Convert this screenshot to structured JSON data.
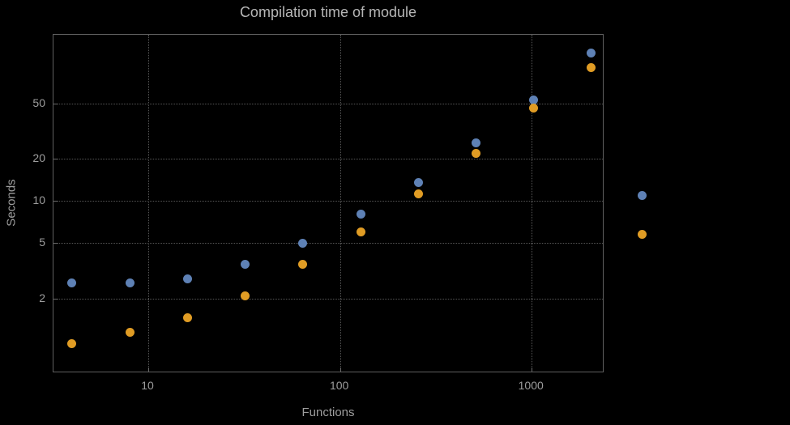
{
  "title": "Compilation time of module",
  "xlabel": "Functions",
  "ylabel": "Seconds",
  "chart_data": {
    "type": "scatter",
    "title": "Compilation time of module",
    "xlabel": "Functions",
    "ylabel": "Seconds",
    "xscale": "log",
    "yscale": "log",
    "xlim": [
      3.2,
      2350
    ],
    "ylim": [
      0.6,
      155
    ],
    "xticks": [
      10,
      100,
      1000
    ],
    "yticks": [
      2,
      5,
      10,
      20,
      50
    ],
    "grid": true,
    "background": "#000000",
    "frame_color": "#5f5f5f",
    "grid_color": "#575757",
    "text_color": "#9d9d9d",
    "x": [
      4,
      8,
      16,
      32,
      64,
      128,
      256,
      512,
      1024,
      2048
    ],
    "series": [
      {
        "name": "blue",
        "color": "#5e81b5",
        "values": [
          2.6,
          2.6,
          2.75,
          3.5,
          5.0,
          8.0,
          13.5,
          26,
          53,
          115
        ]
      },
      {
        "name": "orange",
        "color": "#e09c24",
        "values": [
          0.95,
          1.15,
          1.45,
          2.1,
          3.5,
          6.0,
          11.3,
          22,
          46,
          90
        ]
      }
    ],
    "legend_position": "right"
  }
}
